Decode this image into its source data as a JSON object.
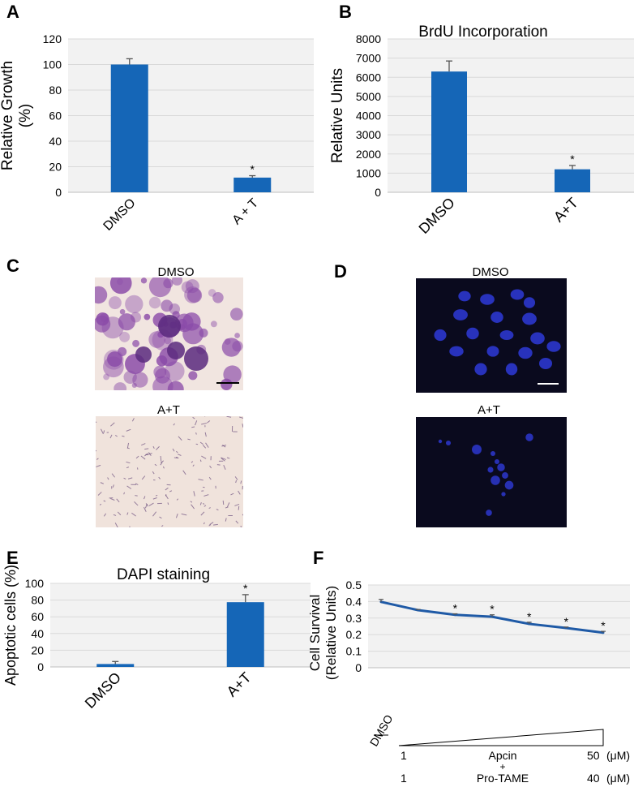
{
  "panels": {
    "A": "A",
    "B": "B",
    "C": "C",
    "D": "D",
    "E": "E",
    "F": "F"
  },
  "colors": {
    "bar": "#1566b7",
    "line": "#1f5aa6",
    "plot_bg": "#f2f2f2",
    "grid": "#d9d9d9",
    "error": "#555555",
    "dapi_bg": "#0a0a1e",
    "nuclei": "#2e3ad8",
    "stain_bg": "#f1e5e0",
    "stain": "#8a4aa8"
  },
  "chart_data": [
    {
      "id": "A",
      "type": "bar",
      "categories": [
        "DMSO",
        "A + T"
      ],
      "values": [
        100,
        11.5
      ],
      "errors": [
        4.5,
        1.5
      ],
      "significance": [
        "",
        "*"
      ],
      "title": "",
      "ylabel_lines": [
        "Relative Growth",
        "(%)"
      ],
      "ylim": [
        0,
        120
      ],
      "yticks": [
        0,
        20,
        40,
        60,
        80,
        100,
        120
      ],
      "grid": true
    },
    {
      "id": "B",
      "type": "bar",
      "categories": [
        "DMSO",
        "A+T"
      ],
      "values": [
        6300,
        1200
      ],
      "errors": [
        550,
        200
      ],
      "significance": [
        "",
        "*"
      ],
      "title": "BrdU Incorporation",
      "ylabel_lines": [
        "Relative Units"
      ],
      "ylim": [
        0,
        8000
      ],
      "yticks": [
        0,
        1000,
        2000,
        3000,
        4000,
        5000,
        6000,
        7000,
        8000
      ],
      "grid": true
    },
    {
      "id": "E",
      "type": "bar",
      "categories": [
        "DMSO",
        "A+T"
      ],
      "values": [
        3.5,
        77.5
      ],
      "errors": [
        3,
        9
      ],
      "significance": [
        "",
        "*"
      ],
      "title": "DAPI staining",
      "ylabel_lines": [
        "Apoptotic cells (%)"
      ],
      "ylim": [
        0,
        100
      ],
      "yticks": [
        0,
        20,
        40,
        60,
        80,
        100
      ],
      "grid": true
    },
    {
      "id": "F",
      "type": "line",
      "x": [
        1,
        2,
        3,
        4,
        5,
        6,
        7
      ],
      "values": [
        0.398,
        0.348,
        0.32,
        0.308,
        0.265,
        0.24,
        0.212
      ],
      "errors": [
        0.015,
        0.004,
        0.006,
        0.012,
        0.01,
        0.006,
        0.008
      ],
      "significance": [
        "",
        "",
        "*",
        "*",
        "*",
        "*",
        "*"
      ],
      "title": "",
      "ylabel_lines": [
        "Cell Survival",
        "(Relative Units)"
      ],
      "ylim": [
        0,
        0.5
      ],
      "yticks": [
        0,
        0.1,
        0.2,
        0.3,
        0.4,
        0.5
      ],
      "grid": true,
      "dose_axis": {
        "control_label": "DMSO",
        "top_low": "1",
        "top_high": "50",
        "bottom_low": "1",
        "bottom_high": "40",
        "unit": "(μM)",
        "drug1": "Apcin",
        "plus": "+",
        "drug2": "Pro-TAME"
      }
    }
  ],
  "micrographs": {
    "C": {
      "top_label": "DMSO",
      "bottom_label": "A+T"
    },
    "D": {
      "top_label": "DMSO",
      "bottom_label": "A+T"
    }
  }
}
